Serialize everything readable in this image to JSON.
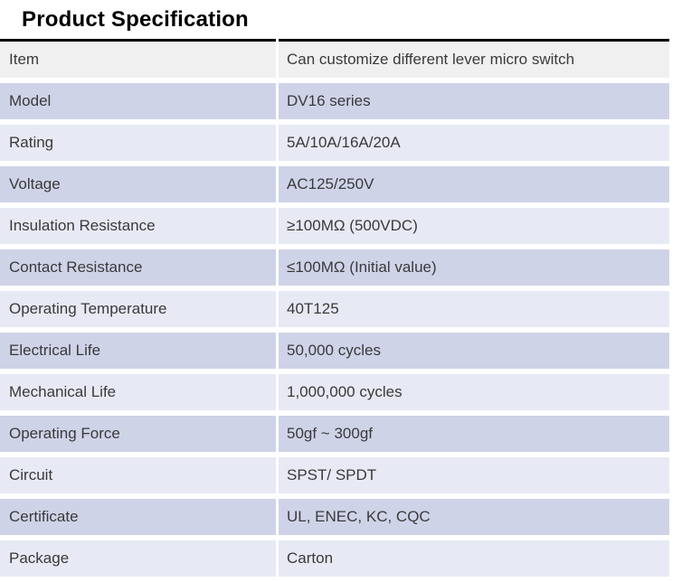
{
  "title": "Product Specification",
  "colors": {
    "header_row_bg": "#f0f0f0",
    "band_dark": "#cfd3e8",
    "band_light": "#e7e9f4",
    "rule": "#000000",
    "cell_text": "#3a3a3a"
  },
  "table": {
    "rows": [
      {
        "item": "Item",
        "value": "Can customize different lever micro switch"
      },
      {
        "item": "Model",
        "value": "DV16 series"
      },
      {
        "item": "Rating",
        "value": "5A/10A/16A/20A"
      },
      {
        "item": "Voltage",
        "value": "AC125/250V"
      },
      {
        "item": "Insulation Resistance",
        "value": "≥100MΩ (500VDC)"
      },
      {
        "item": "Contact Resistance",
        "value": "≤100MΩ (Initial value)"
      },
      {
        "item": "Operating Temperature",
        "value": "40T125"
      },
      {
        "item": "Electrical Life",
        "value": "50,000 cycles"
      },
      {
        "item": "Mechanical Life",
        "value": "1,000,000 cycles"
      },
      {
        "item": "Operating Force",
        "value": "50gf ~ 300gf"
      },
      {
        "item": "Circuit",
        "value": "SPST/ SPDT"
      },
      {
        "item": "Certificate",
        "value": "UL, ENEC, KC, CQC"
      },
      {
        "item": "Package",
        "value": "Carton"
      }
    ]
  }
}
